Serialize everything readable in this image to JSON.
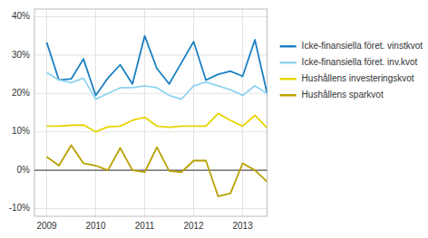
{
  "chart_data": {
    "type": "line",
    "x": [
      2009.0,
      2009.25,
      2009.5,
      2009.75,
      2010.0,
      2010.25,
      2010.5,
      2010.75,
      2011.0,
      2011.25,
      2011.5,
      2011.75,
      2012.0,
      2012.25,
      2012.5,
      2012.75,
      2013.0,
      2013.25,
      2013.5
    ],
    "series": [
      {
        "name": "Icke-finansiella föret. vinstkvot",
        "color": "#1A7FC1",
        "values": [
          0.333,
          0.235,
          0.238,
          0.29,
          0.195,
          0.24,
          0.275,
          0.225,
          0.35,
          0.265,
          0.225,
          0.28,
          0.335,
          0.235,
          0.25,
          0.258,
          0.245,
          0.34,
          0.2
        ]
      },
      {
        "name": "Icke-finansiella föret. inv.kvot",
        "color": "#90D4F0",
        "values": [
          0.255,
          0.235,
          0.228,
          0.24,
          0.185,
          0.2,
          0.215,
          0.215,
          0.22,
          0.215,
          0.195,
          0.185,
          0.22,
          0.23,
          0.22,
          0.21,
          0.195,
          0.22,
          0.2
        ]
      },
      {
        "name": "Hushållens investeringskvot",
        "color": "#E8D400",
        "values": [
          0.115,
          0.115,
          0.117,
          0.118,
          0.1,
          0.113,
          0.115,
          0.13,
          0.138,
          0.115,
          0.112,
          0.115,
          0.115,
          0.115,
          0.148,
          0.13,
          0.115,
          0.143,
          0.11
        ]
      },
      {
        "name": "Hushållens sparkvot",
        "color": "#B8A000",
        "values": [
          0.035,
          0.012,
          0.065,
          0.018,
          0.012,
          0.0,
          0.058,
          0.0,
          -0.005,
          0.06,
          -0.002,
          -0.005,
          0.025,
          0.025,
          -0.068,
          -0.06,
          0.018,
          0.0,
          -0.03
        ]
      }
    ],
    "xlim": [
      2008.75,
      2013.5
    ],
    "xticks": [
      2009,
      2010,
      2011,
      2012,
      2013
    ],
    "ylim": [
      -0.12,
      0.42
    ],
    "yticks": [
      {
        "value": -0.1,
        "label": "-10%"
      },
      {
        "value": 0.0,
        "label": "0%"
      },
      {
        "value": 0.1,
        "label": "10%"
      },
      {
        "value": 0.2,
        "label": "20%"
      },
      {
        "value": 0.3,
        "label": "30%"
      },
      {
        "value": 0.4,
        "label": "40%"
      }
    ],
    "grid": true,
    "legend": "right"
  }
}
